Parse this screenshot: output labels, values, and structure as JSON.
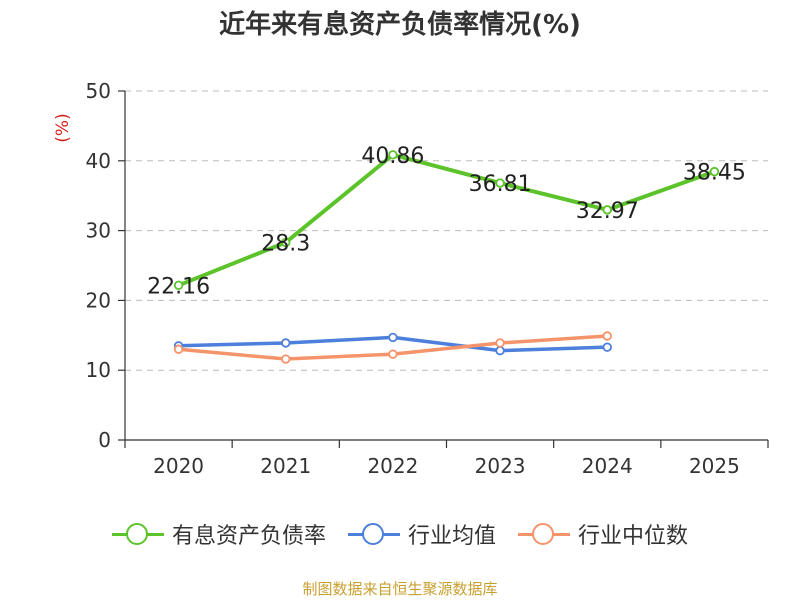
{
  "chart_data": {
    "type": "line",
    "title": "近年来有息资产负债率情况(%)",
    "ylabel": "(%)",
    "xlabel": "",
    "categories": [
      "2020",
      "2021",
      "2022",
      "2023",
      "2024",
      "2025"
    ],
    "ylim": [
      0,
      50
    ],
    "yticks": [
      0,
      10,
      20,
      30,
      40,
      50
    ],
    "grid": true,
    "legend_position": "bottom",
    "series": [
      {
        "name": "有息资产负债率",
        "color": "#5cc42a",
        "values": [
          22.16,
          28.3,
          40.86,
          36.81,
          32.97,
          38.45
        ],
        "labels": [
          "22.16",
          "28.3",
          "40.86",
          "36.81",
          "32.97",
          "38.45"
        ]
      },
      {
        "name": "行业均值",
        "color": "#4d7fdc",
        "values": [
          13.5,
          13.9,
          14.7,
          12.8,
          13.3,
          null
        ]
      },
      {
        "name": "行业中位数",
        "color": "#f5946a",
        "values": [
          13.0,
          11.6,
          12.3,
          13.9,
          14.9,
          null
        ]
      }
    ]
  },
  "source_text": "制图数据来自恒生聚源数据库"
}
